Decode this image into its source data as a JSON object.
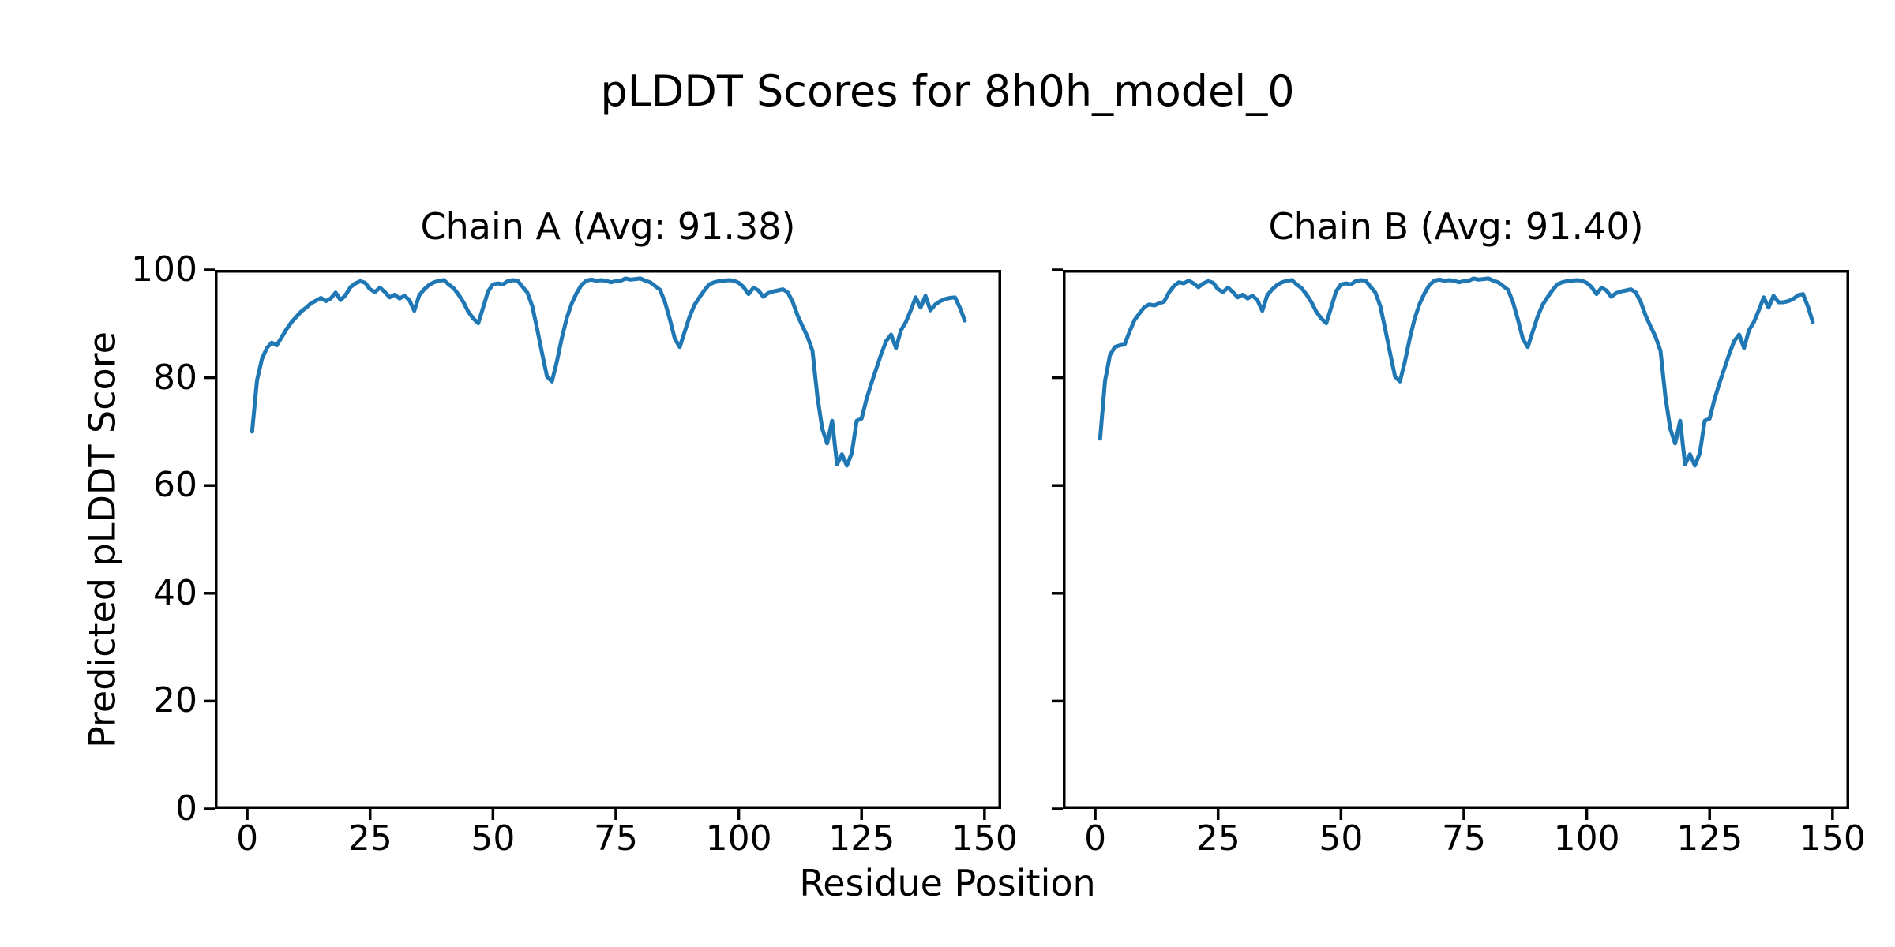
{
  "figure": {
    "title": "pLDDT Scores for 8h0h_model_0",
    "xlabel": "Residue Position",
    "ylabel": "Predicted pLDDT Score",
    "background_color": "#ffffff",
    "text_color": "#000000"
  },
  "chart_data": [
    {
      "type": "line",
      "title": "Chain A (Avg: 91.38)",
      "chain": "A",
      "average_plddt": 91.38,
      "line_color": "#1f77b4",
      "xlim": [
        -6.6,
        153.4
      ],
      "ylim": [
        0,
        100
      ],
      "x_ticks": [
        0,
        25,
        50,
        75,
        100,
        125,
        150
      ],
      "y_ticks": [
        0,
        20,
        40,
        60,
        80,
        100
      ],
      "show_y_tick_labels": true,
      "x_start": 1,
      "values": [
        70.0,
        79.5,
        83.5,
        85.5,
        86.5,
        86.0,
        87.5,
        89.0,
        90.3,
        91.3,
        92.3,
        93.0,
        93.8,
        94.3,
        94.8,
        94.2,
        94.7,
        95.8,
        94.4,
        95.3,
        96.8,
        97.5,
        97.9,
        97.6,
        96.4,
        95.9,
        96.7,
        95.9,
        94.9,
        95.4,
        94.7,
        95.2,
        94.4,
        92.4,
        95.3,
        96.4,
        97.2,
        97.7,
        98.0,
        98.1,
        97.3,
        96.6,
        95.4,
        94.0,
        92.2,
        91.0,
        90.1,
        93.0,
        96.0,
        97.3,
        97.5,
        97.3,
        97.9,
        98.1,
        98.0,
        96.9,
        95.8,
        93.3,
        89.0,
        84.5,
        80.2,
        79.3,
        83.0,
        87.3,
        91.0,
        93.7,
        95.7,
        97.2,
        98.0,
        98.2,
        98.0,
        98.1,
        98.0,
        97.7,
        97.9,
        98.0,
        98.4,
        98.2,
        98.3,
        98.4,
        98.0,
        97.7,
        97.0,
        96.3,
        94.0,
        90.8,
        87.2,
        85.7,
        88.5,
        91.3,
        93.5,
        94.9,
        96.2,
        97.3,
        97.7,
        97.9,
        98.0,
        98.1,
        98.0,
        97.6,
        96.8,
        95.5,
        96.7,
        96.2,
        95.0,
        95.7,
        96.0,
        96.2,
        96.4,
        95.8,
        94.0,
        91.5,
        89.5,
        87.6,
        85.0,
        76.5,
        70.5,
        67.8,
        72.0,
        63.9,
        65.8,
        63.7,
        66.0,
        72.0,
        72.4,
        76.0,
        79.0,
        81.7,
        84.4,
        86.8,
        88.0,
        85.5,
        88.8,
        90.3,
        92.5,
        94.9,
        93.0,
        95.2,
        92.5,
        93.6,
        94.2,
        94.6,
        94.8,
        94.9,
        93.0,
        90.6
      ]
    },
    {
      "type": "line",
      "title": "Chain B (Avg: 91.40)",
      "chain": "B",
      "average_plddt": 91.4,
      "line_color": "#1f77b4",
      "xlim": [
        -6.6,
        153.4
      ],
      "ylim": [
        0,
        100
      ],
      "x_ticks": [
        0,
        25,
        50,
        75,
        100,
        125,
        150
      ],
      "y_ticks": [
        0,
        20,
        40,
        60,
        80,
        100
      ],
      "show_y_tick_labels": false,
      "x_start": 1,
      "values": [
        68.7,
        79.4,
        84.2,
        85.7,
        86.0,
        86.2,
        88.6,
        90.7,
        91.9,
        93.1,
        93.6,
        93.4,
        93.8,
        94.1,
        95.8,
        97.0,
        97.7,
        97.5,
        98.0,
        97.5,
        96.8,
        97.5,
        97.9,
        97.6,
        96.4,
        95.9,
        96.7,
        95.9,
        94.9,
        95.4,
        94.7,
        95.2,
        94.4,
        92.4,
        95.3,
        96.4,
        97.2,
        97.7,
        98.0,
        98.1,
        97.3,
        96.6,
        95.4,
        94.0,
        92.2,
        91.0,
        90.1,
        93.0,
        96.0,
        97.3,
        97.5,
        97.3,
        97.9,
        98.1,
        98.0,
        96.9,
        95.8,
        93.3,
        89.0,
        84.5,
        80.2,
        79.3,
        83.0,
        87.3,
        91.0,
        93.7,
        95.7,
        97.2,
        98.0,
        98.2,
        98.0,
        98.1,
        98.0,
        97.7,
        97.9,
        98.0,
        98.4,
        98.2,
        98.3,
        98.4,
        98.0,
        97.7,
        97.0,
        96.3,
        94.0,
        90.8,
        87.2,
        85.7,
        88.5,
        91.3,
        93.5,
        94.9,
        96.2,
        97.3,
        97.7,
        97.9,
        98.0,
        98.1,
        98.0,
        97.6,
        96.8,
        95.5,
        96.7,
        96.2,
        95.0,
        95.7,
        96.0,
        96.2,
        96.4,
        95.8,
        94.0,
        91.5,
        89.5,
        87.6,
        85.0,
        76.5,
        70.5,
        67.8,
        72.0,
        63.9,
        65.8,
        63.7,
        66.0,
        72.0,
        72.4,
        76.0,
        79.0,
        81.7,
        84.4,
        86.8,
        88.0,
        85.5,
        88.8,
        90.3,
        92.5,
        94.9,
        93.0,
        95.2,
        94.0,
        94.0,
        94.2,
        94.6,
        95.3,
        95.5,
        93.2,
        90.3
      ]
    }
  ],
  "style": {
    "spine_color": "#000000",
    "spine_width": 3.5,
    "tick_length": 14,
    "line_width": 5
  }
}
